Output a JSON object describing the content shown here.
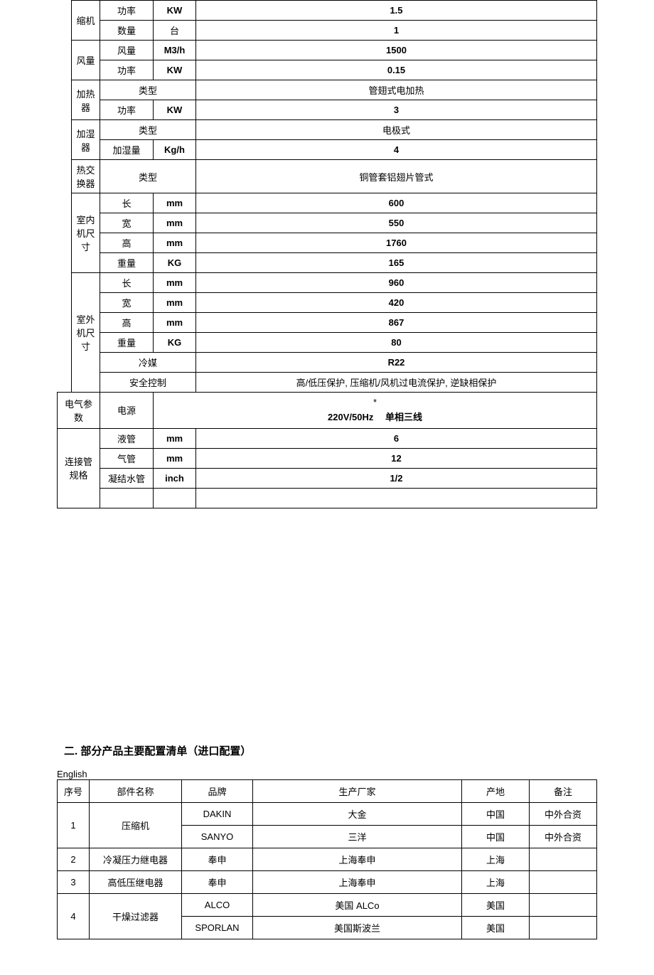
{
  "table1": {
    "compressor": {
      "label": "缩机",
      "power_label": "功率",
      "power_unit": "KW",
      "power_value": "1.5",
      "qty_label": "数量",
      "qty_unit": "台",
      "qty_value": "1"
    },
    "air": {
      "label": "风量",
      "vol_label": "风量",
      "vol_unit": "M3/h",
      "vol_value": "1500",
      "power_label": "功率",
      "power_unit": "KW",
      "power_value": "0.15"
    },
    "heater": {
      "label": "加热器",
      "type_label": "类型",
      "type_value": "管翅式电加热",
      "power_label": "功率",
      "power_unit": "KW",
      "power_value": "3"
    },
    "humidifier": {
      "label": "加湿器",
      "type_label": "类型",
      "type_value": "电极式",
      "hum_label": "加湿量",
      "hum_unit": "Kg/h",
      "hum_value": "4"
    },
    "exchanger": {
      "label": "热交换器",
      "type_label": "类型",
      "type_value": "铜管套铝翅片管式"
    },
    "indoor": {
      "label": "室内机尺寸",
      "len_label": "长",
      "len_unit": "mm",
      "len_value": "600",
      "wid_label": "宽",
      "wid_unit": "mm",
      "wid_value": "550",
      "hei_label": "高",
      "hei_unit": "mm",
      "hei_value": "1760",
      "wt_label": "重量",
      "wt_unit": "KG",
      "wt_value": "165"
    },
    "outdoor": {
      "label": "室外机尺寸",
      "len_label": "长",
      "len_unit": "mm",
      "len_value": "960",
      "wid_label": "宽",
      "wid_unit": "mm",
      "wid_value": "420",
      "hei_label": "高",
      "hei_unit": "mm",
      "hei_value": "867",
      "wt_label": "重量",
      "wt_unit": "KG",
      "wt_value": "80"
    },
    "refrigerant": {
      "label": "冷媒",
      "value": "R22"
    },
    "safety": {
      "label": "安全控制",
      "value": "高/低压保护, 压缩机/风机过电流保护, 逆缺相保护"
    },
    "electrical": {
      "label": "电气参数",
      "power_label": "电源",
      "power_value_l1": "*",
      "power_value_l2": "220V/50Hz  单相三线"
    },
    "pipes": {
      "label": "连接管规格",
      "liquid_label": "液管",
      "liquid_unit": "mm",
      "liquid_value": "6",
      "gas_label": "气管",
      "gas_unit": "mm",
      "gas_value": "12",
      "cond_label": "凝结水管",
      "cond_unit": "inch",
      "cond_value": "1/2"
    }
  },
  "heading2": "二. 部分产品主要配置清单（进口配置）",
  "table2": {
    "headers": {
      "no": "序号",
      "part": "部件名称",
      "brand": "品牌",
      "maker": "生产厂家",
      "origin": "产地",
      "note": "备注"
    },
    "rows": [
      {
        "no": "1",
        "part": "压缩机",
        "brand1": "DAKIN",
        "maker1": "大金",
        "origin1": "中国",
        "note1": "中外合资",
        "brand2": "SANYO",
        "maker2": "三洋",
        "origin2": "中国",
        "note2": "中外合资"
      },
      {
        "no": "2",
        "part": "冷凝压力继电器",
        "brand": "奉申",
        "maker": "上海奉申",
        "origin": "上海",
        "note": ""
      },
      {
        "no": "3",
        "part": "高低压继电器",
        "brand": "奉申",
        "maker": "上海奉申",
        "origin": "上海",
        "note": ""
      },
      {
        "no": "4",
        "part": "干燥过滤器",
        "brand1": "ALCO",
        "maker1": "美国 ALCo",
        "origin1": "美国",
        "note1": "",
        "brand2": "SPORLAN",
        "maker2": "美国斯波兰",
        "origin2": "美国",
        "note2": ""
      }
    ]
  }
}
